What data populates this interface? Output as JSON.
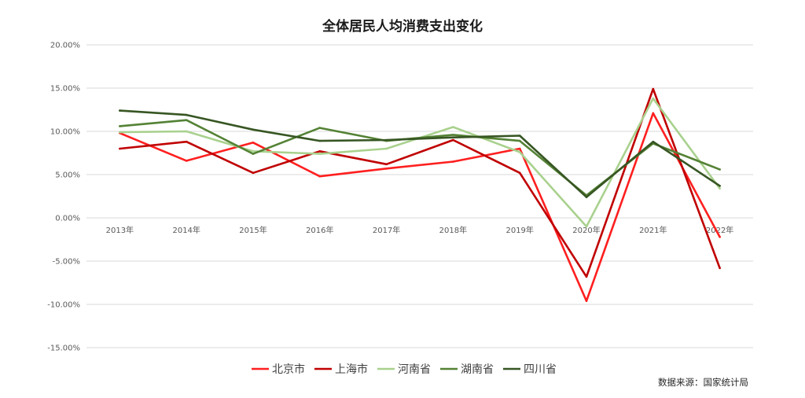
{
  "chart_data": {
    "type": "line",
    "title": "全体居民人均消费支出变化",
    "source": "数据来源：国家统计局",
    "x": [
      "2013年",
      "2014年",
      "2015年",
      "2016年",
      "2017年",
      "2018年",
      "2019年",
      "2020年",
      "2021年",
      "2022年"
    ],
    "ylim": [
      -0.15,
      0.2
    ],
    "yticks": [
      {
        "value": 0.2,
        "label": "20.00%"
      },
      {
        "value": 0.15,
        "label": "15.00%"
      },
      {
        "value": 0.1,
        "label": "10.00%"
      },
      {
        "value": 0.05,
        "label": "5.00%"
      },
      {
        "value": 0.0,
        "label": "0.00%"
      },
      {
        "value": -0.05,
        "label": "-5.00%"
      },
      {
        "value": -0.1,
        "label": "-10.00%"
      },
      {
        "value": -0.15,
        "label": "-15.00%"
      }
    ],
    "grid": true,
    "legend_position": "bottom",
    "series": [
      {
        "name": "北京市",
        "color": "#ff1f1f",
        "values": [
          0.098,
          0.066,
          0.087,
          0.048,
          0.057,
          0.065,
          0.08,
          -0.096,
          0.121,
          -0.022
        ]
      },
      {
        "name": "上海市",
        "color": "#c00000",
        "values": [
          0.08,
          0.088,
          0.052,
          0.077,
          0.062,
          0.09,
          0.052,
          -0.068,
          0.149,
          -0.058
        ]
      },
      {
        "name": "河南省",
        "color": "#a9d18e",
        "values": [
          0.099,
          0.1,
          0.077,
          0.074,
          0.08,
          0.105,
          0.076,
          -0.01,
          0.138,
          0.034
        ]
      },
      {
        "name": "湖南省",
        "color": "#548235",
        "values": [
          0.106,
          0.113,
          0.074,
          0.104,
          0.089,
          0.096,
          0.089,
          0.026,
          0.086,
          0.056
        ]
      },
      {
        "name": "四川省",
        "color": "#375623",
        "values": [
          0.124,
          0.119,
          0.102,
          0.089,
          0.09,
          0.093,
          0.095,
          0.024,
          0.088,
          0.037
        ]
      }
    ]
  }
}
